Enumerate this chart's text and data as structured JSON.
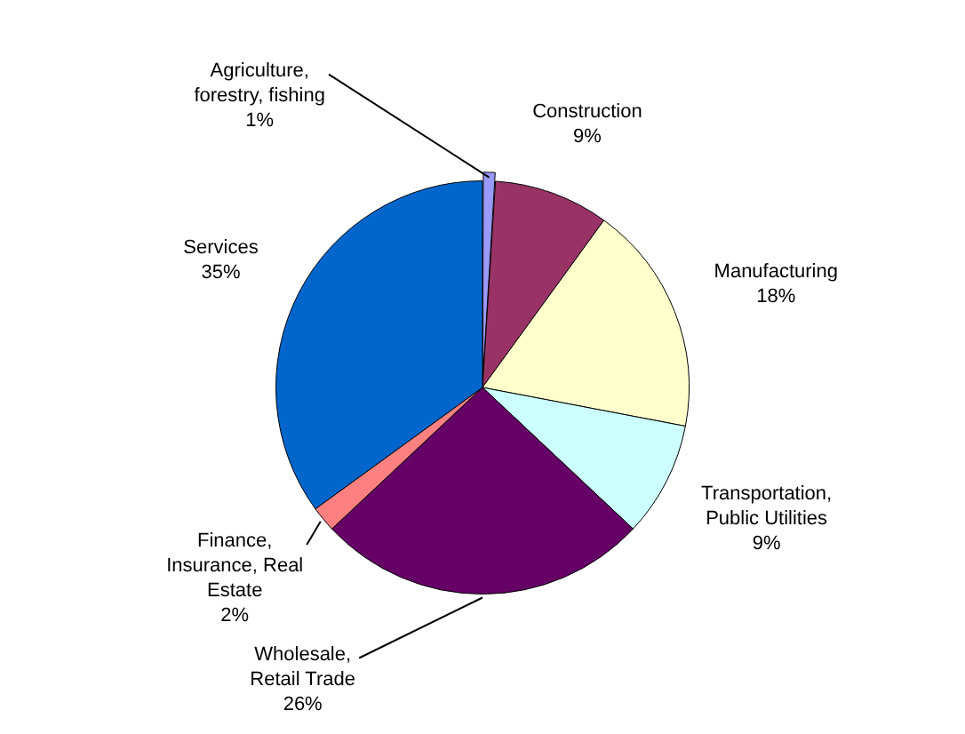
{
  "chart_data": {
    "type": "pie",
    "categories": [
      "Agriculture, forestry, fishing",
      "Construction",
      "Manufacturing",
      "Transportation, Public Utilities",
      "Wholesale, Retail Trade",
      "Finance, Insurance, Real Estate",
      "Services"
    ],
    "values": [
      1,
      9,
      18,
      9,
      26,
      2,
      35
    ],
    "value_labels": [
      "1%",
      "9%",
      "18%",
      "9%",
      "26%",
      "2%",
      "35%"
    ],
    "colors": [
      "#9999ff",
      "#993366",
      "#ffffcc",
      "#ccffff",
      "#660066",
      "#ff8080",
      "#0066cc"
    ],
    "legend": false
  }
}
